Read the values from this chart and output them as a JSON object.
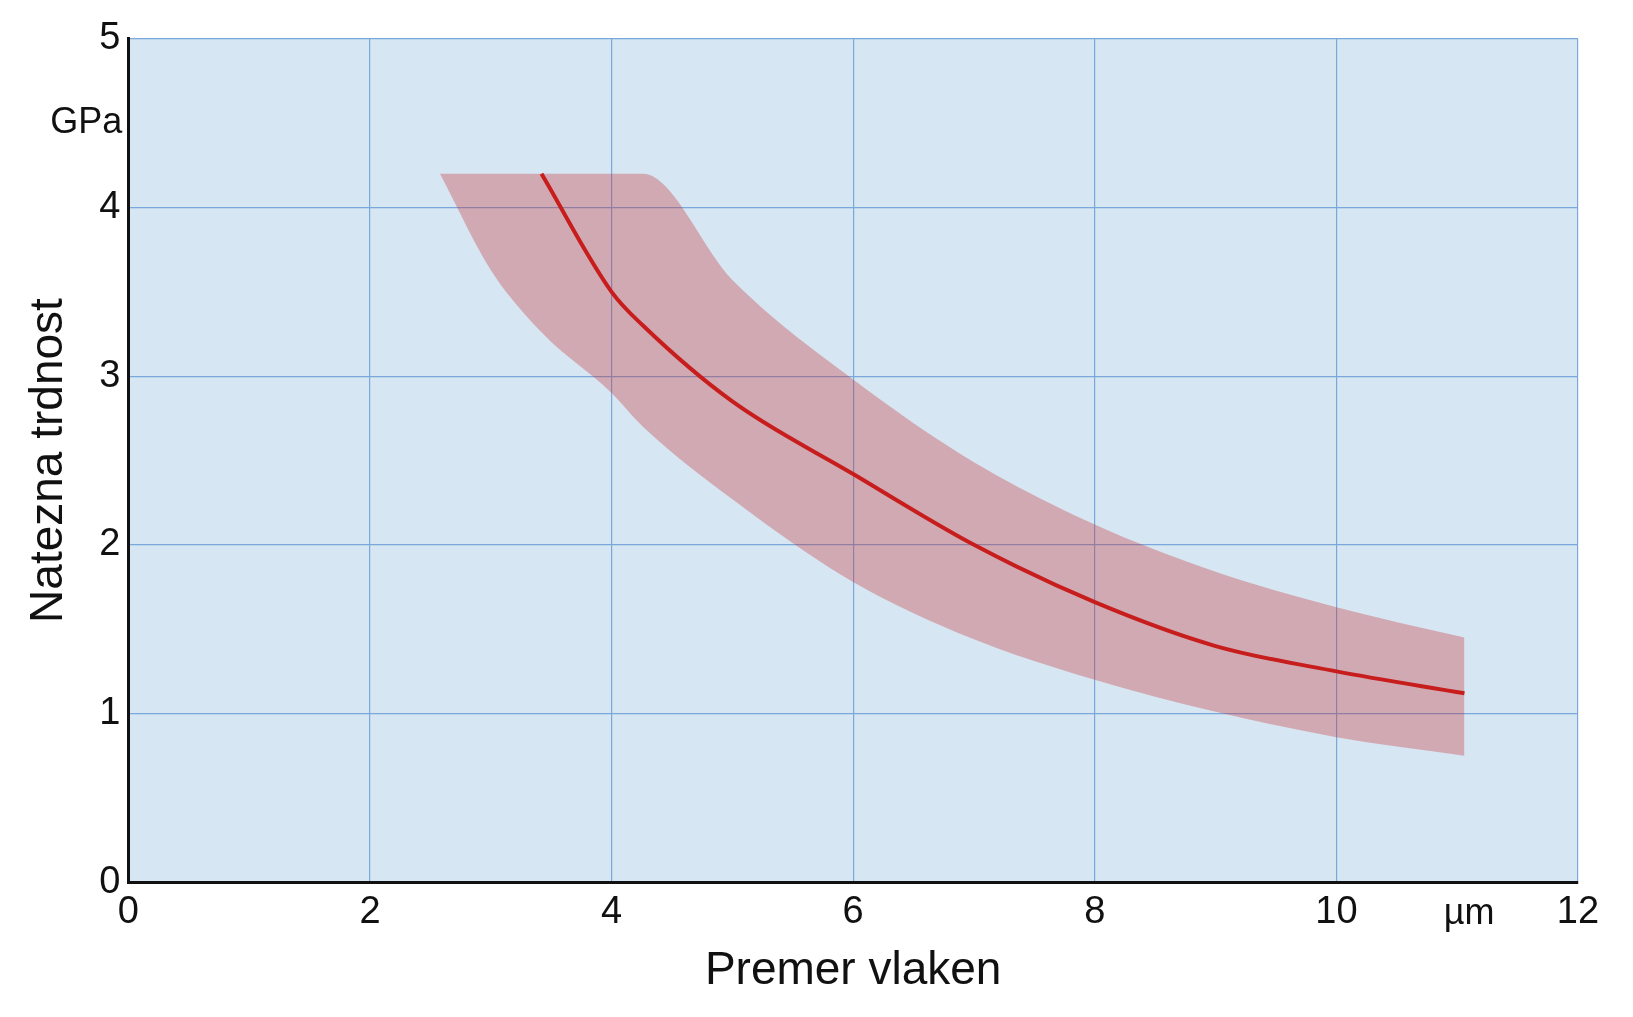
{
  "chart_data": {
    "type": "line",
    "xlabel": "Premer vlaken",
    "ylabel": "Natezna trdnost",
    "annotations": [
      "GPa",
      "µm"
    ],
    "x": [
      2.58,
      3.0,
      3.42,
      4.0,
      4.26,
      5,
      6,
      7,
      8,
      9,
      10,
      11.06
    ],
    "series": [
      {
        "color": "#c81e1e",
        "values": [
          null,
          null,
          4.2,
          3.5,
          3.3,
          2.85,
          2.42,
          2.0,
          1.66,
          1.4,
          1.25,
          1.12
        ],
        "lower": [
          4.2,
          3.63,
          3.26,
          2.9,
          2.7,
          2.27,
          1.78,
          1.44,
          1.2,
          1.01,
          0.86,
          0.75
        ],
        "upper": [
          4.2,
          4.2,
          4.2,
          4.2,
          4.2,
          3.57,
          2.98,
          2.49,
          2.12,
          1.84,
          1.63,
          1.45
        ]
      }
    ],
    "xlim": [
      0,
      12
    ],
    "xticks": [
      0,
      2,
      4,
      6,
      8,
      10,
      12
    ],
    "ylim": [
      0,
      5
    ],
    "yticks": [
      0,
      1,
      2,
      3,
      4,
      5
    ],
    "grid": true,
    "legend": false,
    "marker": "none",
    "line_style": "solid"
  }
}
